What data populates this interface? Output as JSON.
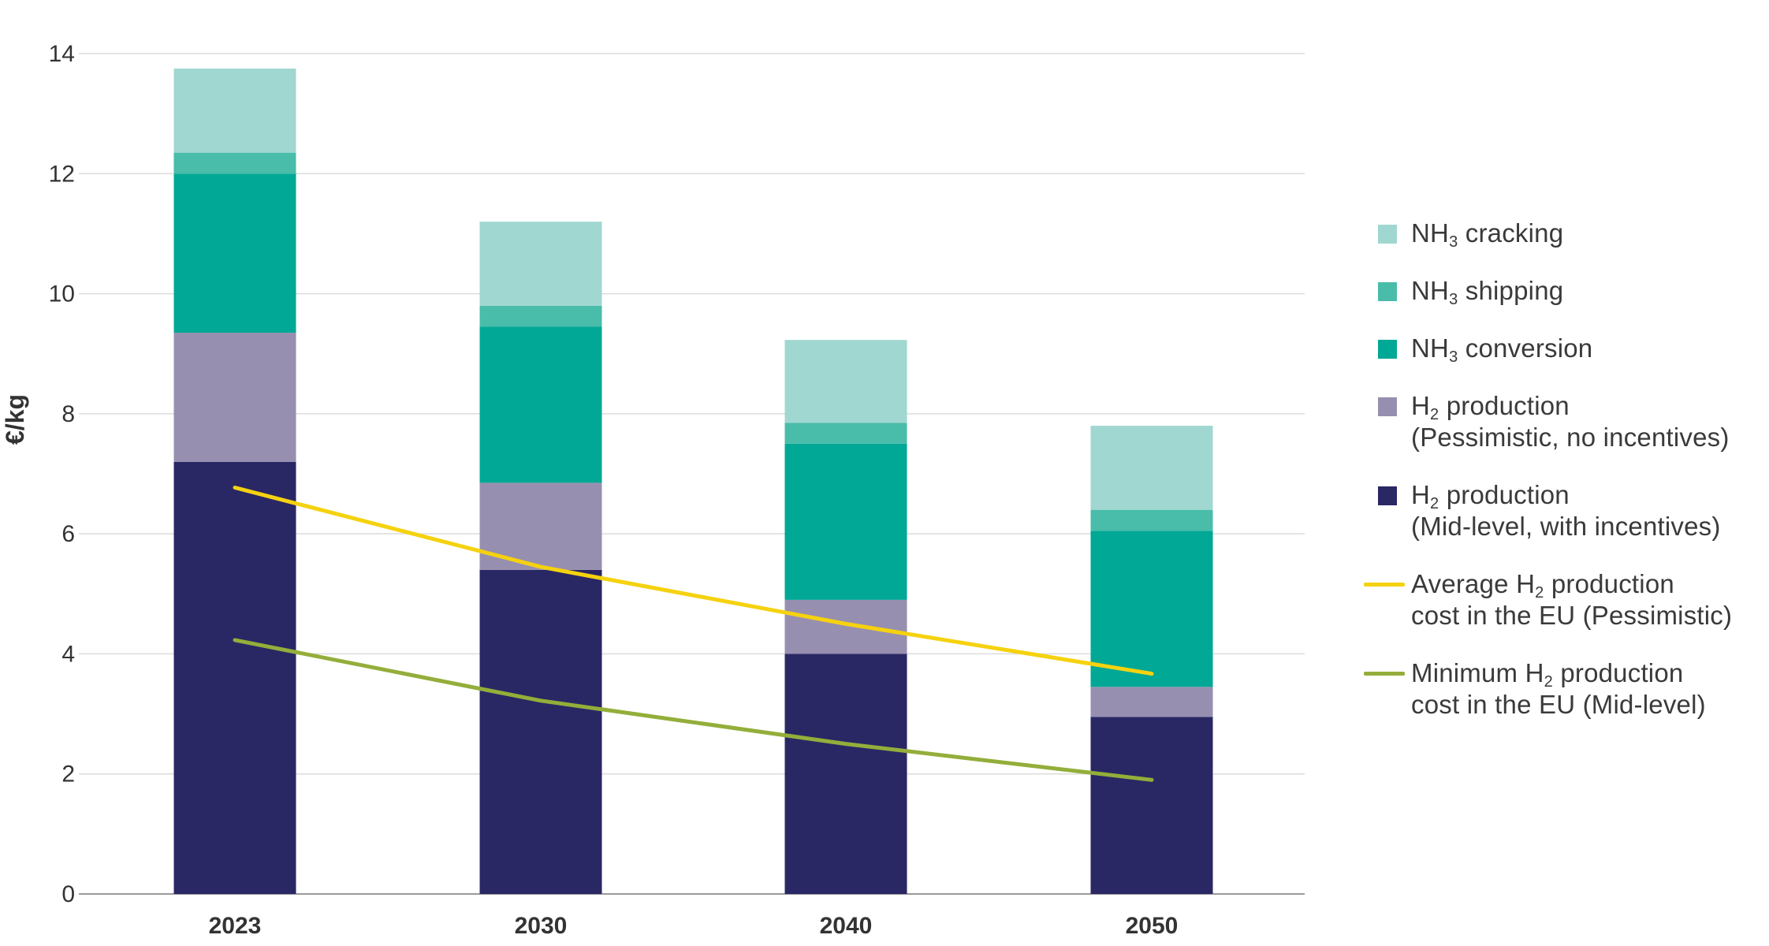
{
  "chart_data": {
    "type": "bar",
    "stacked": true,
    "categories": [
      "2023",
      "2030",
      "2040",
      "2050"
    ],
    "ylabel": "€/kg",
    "ylim": [
      0,
      14
    ],
    "yticks": [
      0,
      2,
      4,
      6,
      8,
      10,
      12,
      14
    ],
    "grid": true,
    "legend_position": "right",
    "series": [
      {
        "name": "H2 production (Mid-level, with incentives)",
        "values": [
          7.2,
          5.4,
          4.0,
          2.95
        ],
        "color": "#2a2765"
      },
      {
        "name": "H2 production (Pessimistic, no incentives)",
        "values": [
          2.15,
          1.45,
          0.9,
          0.5
        ],
        "color": "#978fb0"
      },
      {
        "name": "NH3 conversion",
        "values": [
          2.65,
          2.6,
          2.6,
          2.6
        ],
        "color": "#00a895"
      },
      {
        "name": "NH3 shipping",
        "values": [
          0.35,
          0.35,
          0.35,
          0.35
        ],
        "color": "#49bcaa"
      },
      {
        "name": "NH3 cracking",
        "values": [
          1.4,
          1.4,
          1.38,
          1.4
        ],
        "color": "#a0d7d0"
      }
    ],
    "lines": [
      {
        "name": "Average H2 production cost in the EU (Pessimistic)",
        "values": [
          6.77,
          5.45,
          4.5,
          3.67
        ],
        "color": "#f5d20f"
      },
      {
        "name": "Minimum H2 production cost in the EU (Mid-level)",
        "values": [
          4.23,
          3.22,
          2.5,
          1.9
        ],
        "color": "#93ae3a"
      }
    ]
  },
  "legend": {
    "items": [
      {
        "kind": "box",
        "color": "#a0d7d0",
        "pre": "NH",
        "sub": "3",
        "post": " cracking",
        "line2": ""
      },
      {
        "kind": "box",
        "color": "#49bcaa",
        "pre": "NH",
        "sub": "3",
        "post": " shipping",
        "line2": ""
      },
      {
        "kind": "box",
        "color": "#00a895",
        "pre": "NH",
        "sub": "3",
        "post": " conversion",
        "line2": ""
      },
      {
        "kind": "box",
        "color": "#978fb0",
        "pre": "H",
        "sub": "2",
        "post": " production",
        "line2": "(Pessimistic, no incentives)"
      },
      {
        "kind": "box",
        "color": "#2a2765",
        "pre": "H",
        "sub": "2",
        "post": " production",
        "line2": "(Mid-level, with incentives)"
      },
      {
        "kind": "line",
        "color": "#f5d20f",
        "pre": "Average H",
        "sub": "2",
        "post": " production",
        "line2": "cost in the EU (Pessimistic)"
      },
      {
        "kind": "line",
        "color": "#93ae3a",
        "pre": "Minimum H",
        "sub": "2",
        "post": " production",
        "line2": "cost in the EU (Mid-level)"
      }
    ]
  }
}
